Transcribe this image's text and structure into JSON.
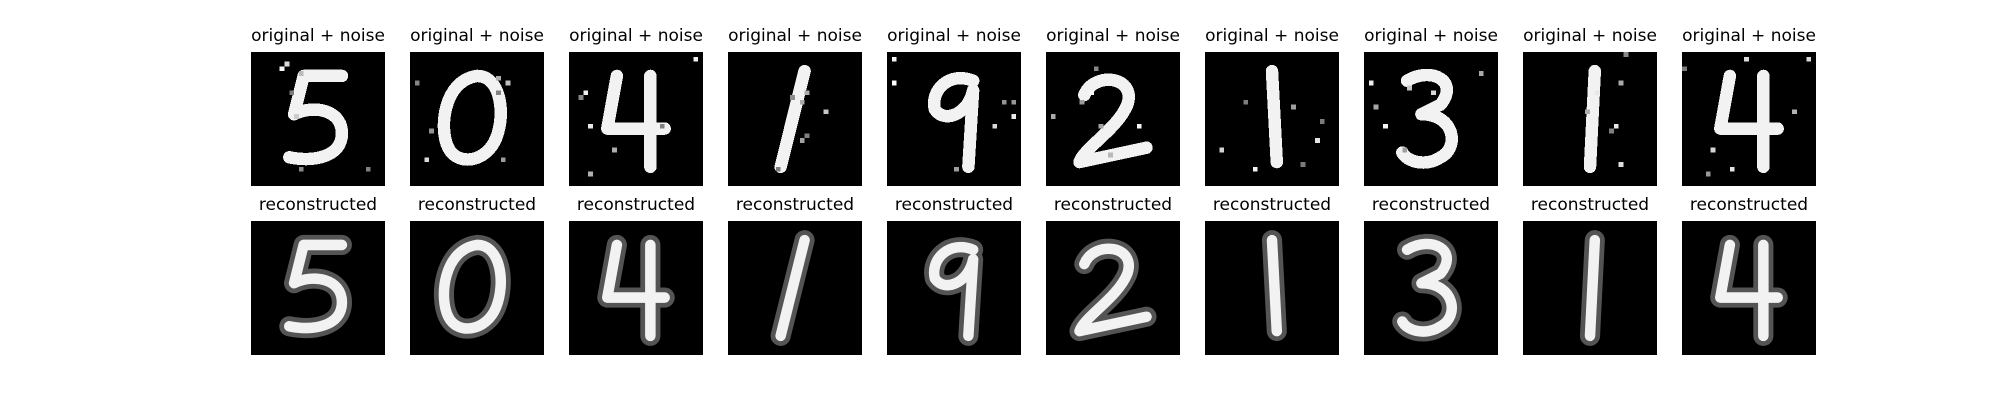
{
  "rows": [
    {
      "name": "noisy",
      "caption": "original + noise",
      "panels": [
        {
          "digit": "5",
          "noise": true
        },
        {
          "digit": "0",
          "noise": true
        },
        {
          "digit": "4",
          "noise": true
        },
        {
          "digit": "1",
          "noise": true
        },
        {
          "digit": "9",
          "noise": true
        },
        {
          "digit": "2",
          "noise": true
        },
        {
          "digit": "1",
          "noise": true
        },
        {
          "digit": "3",
          "noise": true
        },
        {
          "digit": "1",
          "noise": true
        },
        {
          "digit": "4",
          "noise": true
        }
      ]
    },
    {
      "name": "reconstructed",
      "caption": "reconstructed",
      "panels": [
        {
          "digit": "5",
          "noise": false
        },
        {
          "digit": "0",
          "noise": false
        },
        {
          "digit": "4",
          "noise": false
        },
        {
          "digit": "1",
          "noise": false
        },
        {
          "digit": "9",
          "noise": false
        },
        {
          "digit": "2",
          "noise": false
        },
        {
          "digit": "1",
          "noise": false
        },
        {
          "digit": "3",
          "noise": false
        },
        {
          "digit": "1",
          "noise": false
        },
        {
          "digit": "4",
          "noise": false
        }
      ]
    }
  ],
  "colors": {
    "background": "#ffffff",
    "image_background": "#000000",
    "stroke": "#f2f2f2"
  }
}
